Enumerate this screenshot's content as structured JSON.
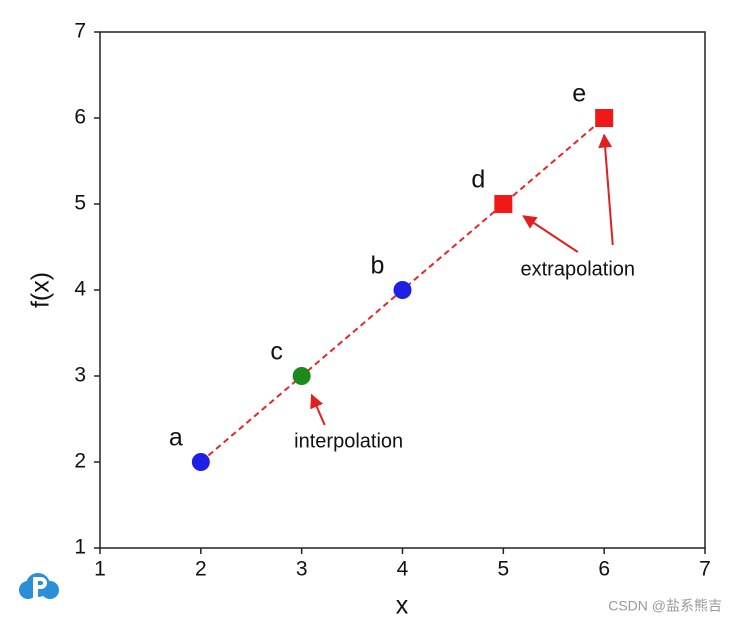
{
  "chart_data": {
    "type": "scatter",
    "xlabel": "x",
    "ylabel": "f(x)",
    "xlim": [
      1,
      7
    ],
    "ylim": [
      1,
      7
    ],
    "xticks": [
      1,
      2,
      3,
      4,
      5,
      6,
      7
    ],
    "yticks": [
      1,
      2,
      3,
      4,
      5,
      6,
      7
    ],
    "series": [
      {
        "x": [
          2,
          3,
          4,
          5,
          6
        ],
        "values": [
          2,
          3,
          4,
          5,
          6
        ],
        "point_labels": [
          "a",
          "c",
          "b",
          "d",
          "e"
        ],
        "colors": [
          "#1f1fe6",
          "#1a8a1a",
          "#1f1fe6",
          "#f01818",
          "#f01818"
        ],
        "markers": [
          "circle",
          "circle",
          "circle",
          "square",
          "square"
        ],
        "line_color": "#e8262a",
        "line_dashed": true
      }
    ],
    "annotations": [
      {
        "text": "interpolation",
        "points": [
          1
        ]
      },
      {
        "text": "extrapolation",
        "points": [
          3,
          4
        ]
      }
    ],
    "watermark": "CSDN @盐系熊吉"
  }
}
